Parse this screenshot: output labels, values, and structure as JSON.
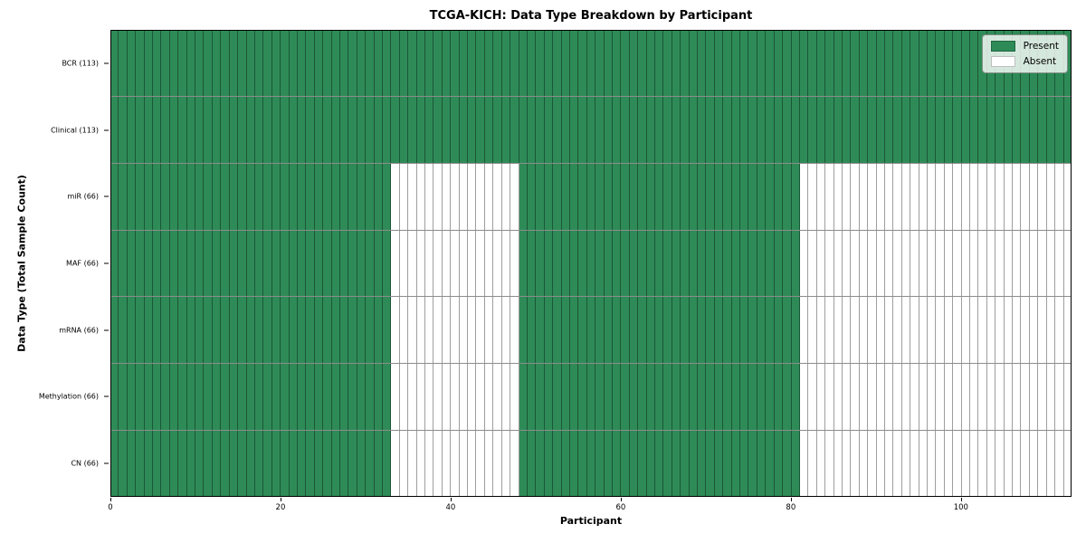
{
  "figure": {
    "title": "TCGA-KICH: Data Type Breakdown by Participant",
    "xlabel": "Participant",
    "ylabel": "Data Type (Total Sample Count)"
  },
  "chart_data": {
    "type": "heatmap",
    "title": "TCGA-KICH: Data Type Breakdown by Participant",
    "xlabel": "Participant",
    "ylabel": "Data Type (Total Sample Count)",
    "n_participants": 113,
    "x_range": [
      0,
      113
    ],
    "x_ticks": [
      0,
      20,
      40,
      60,
      80,
      100
    ],
    "grid": "per-cell borders",
    "colors": {
      "present": "#2E8B57",
      "absent": "#FFFFFF"
    },
    "legend": {
      "position": "upper right",
      "entries": [
        {
          "label": "Present",
          "color": "#2E8B57"
        },
        {
          "label": "Absent",
          "color": "#FFFFFF"
        }
      ]
    },
    "rows": [
      {
        "label": "BCR (113)",
        "present_count": 113,
        "absent_count": 0,
        "present_ranges": [
          [
            0,
            113
          ]
        ]
      },
      {
        "label": "Clinical (113)",
        "present_count": 113,
        "absent_count": 0,
        "present_ranges": [
          [
            0,
            113
          ]
        ]
      },
      {
        "label": "miR (66)",
        "present_count": 66,
        "absent_count": 47,
        "present_ranges": [
          [
            0,
            33
          ],
          [
            48,
            81
          ]
        ]
      },
      {
        "label": "MAF (66)",
        "present_count": 66,
        "absent_count": 47,
        "present_ranges": [
          [
            0,
            33
          ],
          [
            48,
            81
          ]
        ]
      },
      {
        "label": "mRNA (66)",
        "present_count": 66,
        "absent_count": 47,
        "present_ranges": [
          [
            0,
            33
          ],
          [
            48,
            81
          ]
        ]
      },
      {
        "label": "Methylation (66)",
        "present_count": 66,
        "absent_count": 47,
        "present_ranges": [
          [
            0,
            33
          ],
          [
            48,
            81
          ]
        ]
      },
      {
        "label": "CN (66)",
        "present_count": 66,
        "absent_count": 47,
        "present_ranges": [
          [
            0,
            33
          ],
          [
            48,
            81
          ]
        ]
      }
    ],
    "notes": "present_ranges are half-open participant index ranges [start, end); green = Present, white = Absent"
  }
}
